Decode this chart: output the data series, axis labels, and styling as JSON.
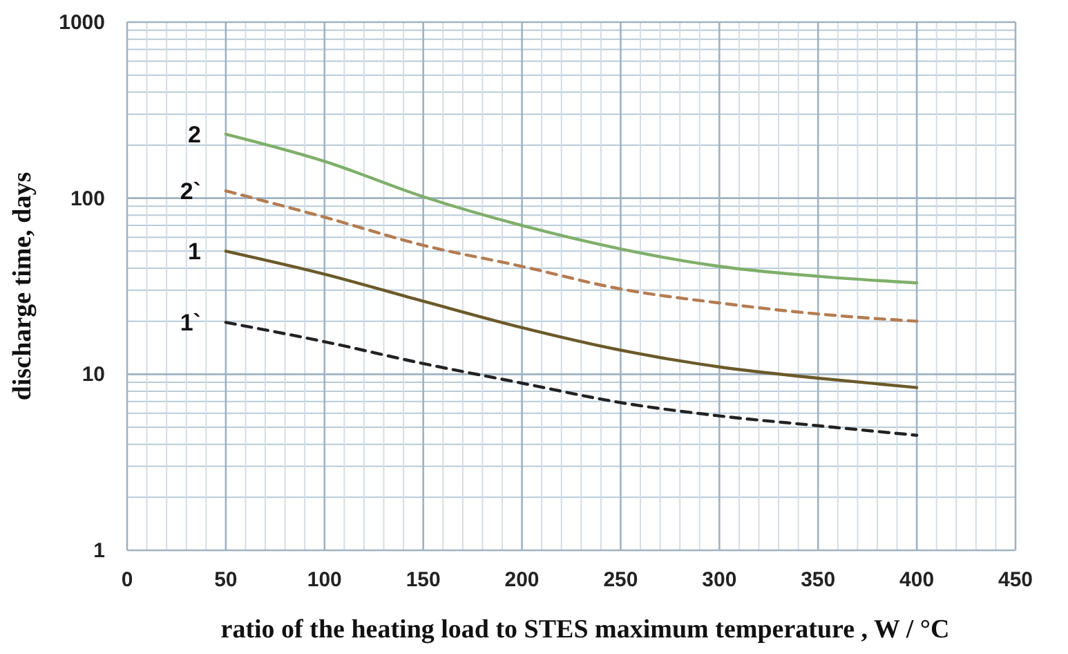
{
  "chart_data": {
    "type": "line",
    "xlabel": "ratio of the heating load to STES maximum temperature , W / °C",
    "ylabel": "discharge time, days",
    "log": "y",
    "grid": true,
    "x": [
      50,
      100,
      150,
      200,
      250,
      300,
      350,
      400
    ],
    "xlim": [
      0,
      450
    ],
    "xticks": [
      0,
      50,
      100,
      150,
      200,
      250,
      300,
      350,
      400,
      450
    ],
    "ylim": [
      1,
      1000
    ],
    "yticks": [
      1,
      10,
      100,
      1000
    ],
    "series": [
      {
        "name": "2",
        "color": "#7faf6a",
        "line_style": "solid",
        "values": [
          231,
          162,
          102,
          70,
          51.5,
          41,
          36,
          33
        ]
      },
      {
        "name": "2`",
        "color": "#b47c52",
        "line_style": "dashed",
        "values": [
          110,
          78,
          54,
          41,
          30.5,
          25.4,
          22,
          20
        ]
      },
      {
        "name": "1",
        "color": "#6b5a2a",
        "line_style": "solid",
        "values": [
          50,
          37,
          26,
          18.4,
          13.7,
          11,
          9.5,
          8.4
        ]
      },
      {
        "name": "1`",
        "color": "#222222",
        "line_style": "dashed",
        "values": [
          19.7,
          15.3,
          11.5,
          8.9,
          6.9,
          5.8,
          5.1,
          4.5
        ]
      }
    ]
  }
}
